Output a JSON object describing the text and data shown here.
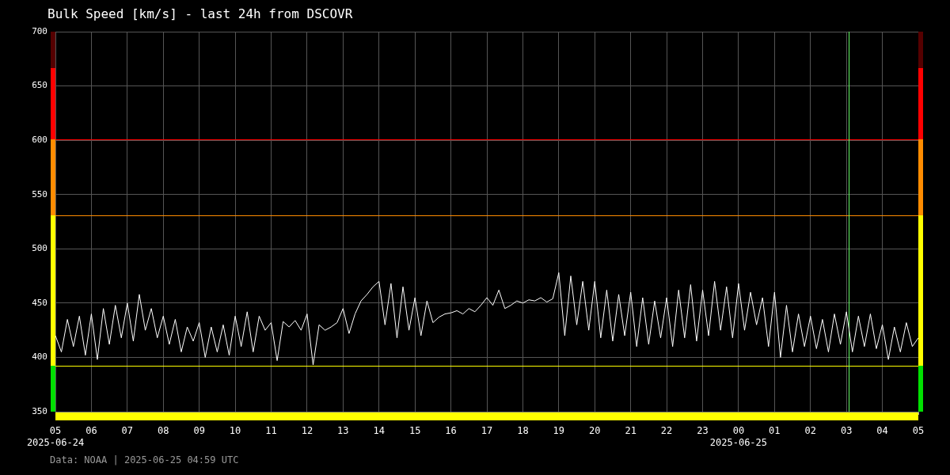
{
  "chart_data": {
    "type": "line",
    "title": "Bulk Speed [km/s] - last 24h from DSCOVR",
    "x": [
      "2025-06-24T05:00",
      "2025-06-24T05:10",
      "2025-06-24T05:20",
      "2025-06-24T05:30",
      "2025-06-24T05:40",
      "2025-06-24T05:50",
      "2025-06-24T06:00",
      "2025-06-24T06:10",
      "2025-06-24T06:20",
      "2025-06-24T06:30",
      "2025-06-24T06:40",
      "2025-06-24T06:50",
      "2025-06-24T07:00",
      "2025-06-24T07:10",
      "2025-06-24T07:20",
      "2025-06-24T07:30",
      "2025-06-24T07:40",
      "2025-06-24T07:50",
      "2025-06-24T08:00",
      "2025-06-24T08:10",
      "2025-06-24T08:20",
      "2025-06-24T08:30",
      "2025-06-24T08:40",
      "2025-06-24T08:50",
      "2025-06-24T09:00",
      "2025-06-24T09:10",
      "2025-06-24T09:20",
      "2025-06-24T09:30",
      "2025-06-24T09:40",
      "2025-06-24T09:50",
      "2025-06-24T10:00",
      "2025-06-24T10:10",
      "2025-06-24T10:20",
      "2025-06-24T10:30",
      "2025-06-24T10:40",
      "2025-06-24T10:50",
      "2025-06-24T11:00",
      "2025-06-24T11:10",
      "2025-06-24T11:20",
      "2025-06-24T11:30",
      "2025-06-24T11:40",
      "2025-06-24T11:50",
      "2025-06-24T12:00",
      "2025-06-24T12:10",
      "2025-06-24T12:20",
      "2025-06-24T12:30",
      "2025-06-24T12:40",
      "2025-06-24T12:50",
      "2025-06-24T13:00",
      "2025-06-24T13:10",
      "2025-06-24T13:20",
      "2025-06-24T13:30",
      "2025-06-24T13:40",
      "2025-06-24T13:50",
      "2025-06-24T14:00",
      "2025-06-24T14:10",
      "2025-06-24T14:20",
      "2025-06-24T14:30",
      "2025-06-24T14:40",
      "2025-06-24T14:50",
      "2025-06-24T15:00",
      "2025-06-24T15:10",
      "2025-06-24T15:20",
      "2025-06-24T15:30",
      "2025-06-24T15:40",
      "2025-06-24T15:50",
      "2025-06-24T16:00",
      "2025-06-24T16:10",
      "2025-06-24T16:20",
      "2025-06-24T16:30",
      "2025-06-24T16:40",
      "2025-06-24T16:50",
      "2025-06-24T17:00",
      "2025-06-24T17:10",
      "2025-06-24T17:20",
      "2025-06-24T17:30",
      "2025-06-24T17:40",
      "2025-06-24T17:50",
      "2025-06-24T18:00",
      "2025-06-24T18:10",
      "2025-06-24T18:20",
      "2025-06-24T18:30",
      "2025-06-24T18:40",
      "2025-06-24T18:50",
      "2025-06-24T19:00",
      "2025-06-24T19:10",
      "2025-06-24T19:20",
      "2025-06-24T19:30",
      "2025-06-24T19:40",
      "2025-06-24T19:50",
      "2025-06-24T20:00",
      "2025-06-24T20:10",
      "2025-06-24T20:20",
      "2025-06-24T20:30",
      "2025-06-24T20:40",
      "2025-06-24T20:50",
      "2025-06-24T21:00",
      "2025-06-24T21:10",
      "2025-06-24T21:20",
      "2025-06-24T21:30",
      "2025-06-24T21:40",
      "2025-06-24T21:50",
      "2025-06-24T22:00",
      "2025-06-24T22:10",
      "2025-06-24T22:20",
      "2025-06-24T22:30",
      "2025-06-24T22:40",
      "2025-06-24T22:50",
      "2025-06-24T23:00",
      "2025-06-24T23:10",
      "2025-06-24T23:20",
      "2025-06-24T23:30",
      "2025-06-24T23:40",
      "2025-06-24T23:50",
      "2025-06-25T00:00",
      "2025-06-25T00:10",
      "2025-06-25T00:20",
      "2025-06-25T00:30",
      "2025-06-25T00:40",
      "2025-06-25T00:50",
      "2025-06-25T01:00",
      "2025-06-25T01:10",
      "2025-06-25T01:20",
      "2025-06-25T01:30",
      "2025-06-25T01:40",
      "2025-06-25T01:50",
      "2025-06-25T02:00",
      "2025-06-25T02:10",
      "2025-06-25T02:20",
      "2025-06-25T02:30",
      "2025-06-25T02:40",
      "2025-06-25T02:50",
      "2025-06-25T03:00",
      "2025-06-25T03:10",
      "2025-06-25T03:20",
      "2025-06-25T03:30",
      "2025-06-25T03:40",
      "2025-06-25T03:50",
      "2025-06-25T04:00",
      "2025-06-25T04:10",
      "2025-06-25T04:20",
      "2025-06-25T04:30",
      "2025-06-25T04:40",
      "2025-06-25T04:50",
      "2025-06-25T05:00"
    ],
    "series": [
      {
        "color": "#ffffff",
        "values": [
          420,
          405,
          435,
          410,
          438,
          402,
          440,
          398,
          445,
          412,
          448,
          418,
          450,
          415,
          458,
          425,
          445,
          418,
          438,
          412,
          435,
          405,
          428,
          415,
          432,
          400,
          428,
          405,
          430,
          402,
          438,
          410,
          442,
          405,
          438,
          425,
          432,
          397,
          433,
          428,
          434,
          425,
          440,
          393,
          430,
          425,
          428,
          432,
          445,
          422,
          440,
          452,
          458,
          465,
          470,
          430,
          468,
          418,
          465,
          425,
          455,
          420,
          452,
          432,
          437,
          440,
          441,
          443,
          440,
          445,
          442,
          448,
          455,
          448,
          462,
          445,
          448,
          452,
          450,
          453,
          452,
          455,
          451,
          454,
          478,
          420,
          475,
          430,
          470,
          425,
          470,
          418,
          462,
          415,
          458,
          420,
          460,
          410,
          455,
          412,
          452,
          418,
          455,
          410,
          462,
          418,
          467,
          415,
          462,
          420,
          470,
          425,
          465,
          418,
          468,
          425,
          460,
          430,
          455,
          410,
          460,
          400,
          448,
          405,
          440,
          410,
          438,
          408,
          435,
          405,
          440,
          412,
          442,
          405,
          438,
          410,
          440,
          408,
          430,
          398,
          428,
          405,
          432,
          410,
          418
        ]
      }
    ],
    "xlim": [
      "2025-06-24T05:00",
      "2025-06-25T05:00"
    ],
    "xticks": [
      {
        "value": "2025-06-24T05:00",
        "label": "05\n2025-06-24"
      },
      {
        "value": "2025-06-24T06:00",
        "label": "06"
      },
      {
        "value": "2025-06-24T07:00",
        "label": "07"
      },
      {
        "value": "2025-06-24T08:00",
        "label": "08"
      },
      {
        "value": "2025-06-24T09:00",
        "label": "09"
      },
      {
        "value": "2025-06-24T10:00",
        "label": "10"
      },
      {
        "value": "2025-06-24T11:00",
        "label": "11"
      },
      {
        "value": "2025-06-24T12:00",
        "label": "12"
      },
      {
        "value": "2025-06-24T13:00",
        "label": "13"
      },
      {
        "value": "2025-06-24T14:00",
        "label": "14"
      },
      {
        "value": "2025-06-24T15:00",
        "label": "15"
      },
      {
        "value": "2025-06-24T16:00",
        "label": "16"
      },
      {
        "value": "2025-06-24T17:00",
        "label": "17"
      },
      {
        "value": "2025-06-24T18:00",
        "label": "18"
      },
      {
        "value": "2025-06-24T19:00",
        "label": "19"
      },
      {
        "value": "2025-06-24T20:00",
        "label": "20"
      },
      {
        "value": "2025-06-24T21:00",
        "label": "21"
      },
      {
        "value": "2025-06-24T22:00",
        "label": "22"
      },
      {
        "value": "2025-06-24T23:00",
        "label": "23"
      },
      {
        "value": "2025-06-25T00:00",
        "label": "00\n2025-06-25"
      },
      {
        "value": "2025-06-25T01:00",
        "label": "01"
      },
      {
        "value": "2025-06-25T02:00",
        "label": "02"
      },
      {
        "value": "2025-06-25T03:00",
        "label": "03"
      },
      {
        "value": "2025-06-25T04:00",
        "label": "04"
      },
      {
        "value": "2025-06-25T05:00",
        "label": "05"
      }
    ],
    "ylim": [
      350,
      700
    ],
    "yticks": [
      350,
      400,
      450,
      500,
      550,
      600,
      650,
      700
    ],
    "grid": true,
    "legend": false,
    "marker": "none",
    "line_style": "solid",
    "ref_lines": [
      {
        "axis": "y",
        "value": 601,
        "color": "#ff0000"
      },
      {
        "axis": "y",
        "value": 531,
        "color": "#ff8c00"
      },
      {
        "axis": "y",
        "value": 392,
        "color": "#ffff00"
      },
      {
        "axis": "x",
        "value": "2025-06-25T03:04",
        "color": "#66ff66"
      }
    ],
    "annotations": [
      "Data: NOAA | 2025-06-25 04:59 UTC"
    ]
  }
}
